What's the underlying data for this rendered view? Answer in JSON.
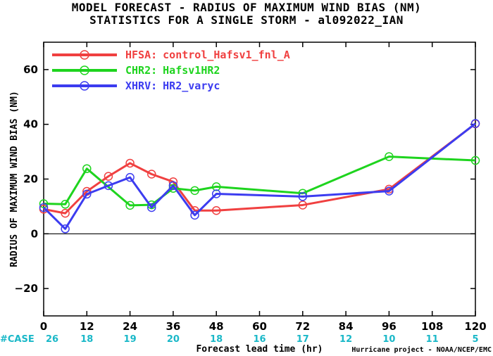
{
  "title_line1": "MODEL FORECAST - RADIUS OF MAXIMUM WIND BIAS (NM)",
  "title_line2": "STATISTICS FOR A SINGLE STORM - al092022_IAN",
  "credit": "Hurricane project - NOAA/NCEP/EMC",
  "case_label": "#CASE",
  "chart_data": {
    "type": "line",
    "xlabel": "Forecast lead time (hr)",
    "ylabel": "RADIUS OF MAXIMUM WIND BIAS (NM)",
    "xlim": [
      0,
      120
    ],
    "ylim": [
      -30,
      70
    ],
    "x_ticks": [
      0,
      12,
      24,
      36,
      48,
      60,
      72,
      84,
      96,
      108,
      120
    ],
    "y_ticks": [
      -20,
      0,
      20,
      40,
      60
    ],
    "zero_line": true,
    "legend_position": "top-left",
    "cases": [
      {
        "x": 0,
        "n": "26"
      },
      {
        "x": 12,
        "n": "18"
      },
      {
        "x": 24,
        "n": "19"
      },
      {
        "x": 36,
        "n": "20"
      },
      {
        "x": 48,
        "n": "18"
      },
      {
        "x": 60,
        "n": "16"
      },
      {
        "x": 72,
        "n": "17"
      },
      {
        "x": 84,
        "n": "12"
      },
      {
        "x": 96,
        "n": "10"
      },
      {
        "x": 108,
        "n": "11"
      },
      {
        "x": 120,
        "n": "5"
      }
    ],
    "series": [
      {
        "name": "HFSA:",
        "desc": "control_Hafsv1_fnl_A",
        "color": "#f04040",
        "points": [
          [
            0,
            9
          ],
          [
            6,
            7.5
          ],
          [
            12,
            15.5
          ],
          [
            18,
            21
          ],
          [
            24,
            25.8
          ],
          [
            30,
            21.8
          ],
          [
            36,
            19
          ],
          [
            42,
            8.5
          ],
          [
            48,
            8.5
          ],
          [
            72,
            10.5
          ],
          [
            96,
            16.3
          ],
          [
            120,
            40.2
          ]
        ]
      },
      {
        "name": "CHR2:",
        "desc": "Hafsv1HR2",
        "color": "#1ed41e",
        "points": [
          [
            0,
            11
          ],
          [
            6,
            10.8
          ],
          [
            12,
            23.8
          ],
          [
            24,
            10.4
          ],
          [
            30,
            10.6
          ],
          [
            36,
            16.6
          ],
          [
            42,
            15.8
          ],
          [
            48,
            17.2
          ],
          [
            72,
            14.8
          ],
          [
            96,
            28.2
          ],
          [
            120,
            26.8
          ]
        ]
      },
      {
        "name": "XHRV:",
        "desc": "HR2_varyc",
        "color": "#3c3cf0",
        "points": [
          [
            0,
            9.6
          ],
          [
            6,
            1.8
          ],
          [
            12,
            14.5
          ],
          [
            18,
            17.6
          ],
          [
            24,
            20.6
          ],
          [
            30,
            9.6
          ],
          [
            36,
            17.6
          ],
          [
            42,
            6.8
          ],
          [
            48,
            14.6
          ],
          [
            72,
            13.6
          ],
          [
            96,
            15.6
          ],
          [
            120,
            40.3
          ]
        ]
      }
    ]
  }
}
